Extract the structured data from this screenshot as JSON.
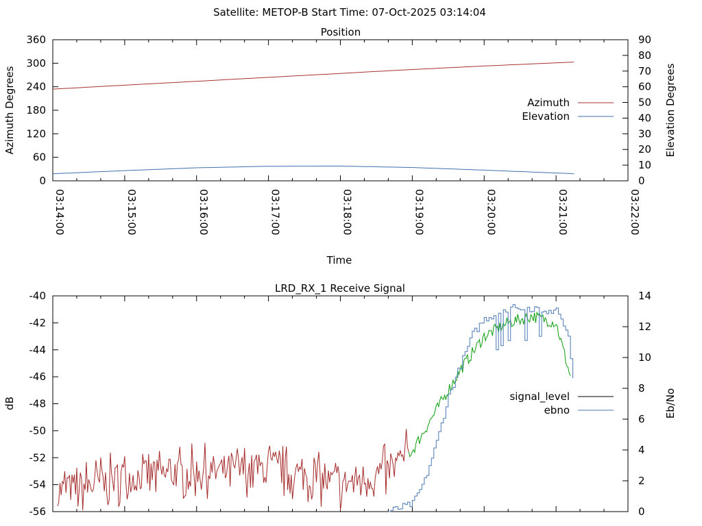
{
  "header": {
    "title": "Satellite: METOP-B    Start Time: 07-Oct-2025 03:14:04"
  },
  "colors": {
    "azimuth": "#a83232",
    "elevation": "#3f6fb0",
    "signal_level_legend": "#000000",
    "signal_level_low": "#a52a2a",
    "signal_level_high": "#0c9e0c",
    "ebno": "#4a79b5"
  },
  "chart_data": [
    {
      "type": "line",
      "title": "Position",
      "xlabel": "Time",
      "ylabel": "Azimuth Degrees",
      "y2label": "Elevation Degrees",
      "xticks": [
        "03:14:00",
        "03:15:00",
        "03:16:00",
        "03:17:00",
        "03:18:00",
        "03:19:00",
        "03:20:00",
        "03:21:00",
        "03:22:00"
      ],
      "xlim": [
        "03:14:00",
        "03:22:00"
      ],
      "ylim": [
        0,
        360
      ],
      "y2lim": [
        0,
        90
      ],
      "yticks": [
        0,
        60,
        120,
        180,
        240,
        300,
        360
      ],
      "y2ticks": [
        0,
        10,
        20,
        30,
        40,
        50,
        60,
        70,
        80,
        90
      ],
      "legend_position": "right",
      "series": [
        {
          "name": "Azimuth",
          "axis": "y",
          "x": [
            "03:14:00",
            "03:15:00",
            "03:16:00",
            "03:17:00",
            "03:18:00",
            "03:19:00",
            "03:20:00",
            "03:21:00",
            "03:21:15"
          ],
          "values": [
            234,
            244,
            254,
            264,
            274,
            284,
            293,
            301,
            303
          ]
        },
        {
          "name": "Elevation",
          "axis": "y2",
          "x": [
            "03:14:00",
            "03:15:00",
            "03:16:00",
            "03:17:00",
            "03:18:00",
            "03:19:00",
            "03:20:00",
            "03:21:00",
            "03:21:15"
          ],
          "values": [
            4.5,
            6.5,
            8.3,
            9.3,
            9.4,
            8.5,
            6.8,
            5.0,
            4.5
          ]
        }
      ]
    },
    {
      "type": "line",
      "title": "LRD_RX_1 Receive Signal",
      "ylabel": "dB",
      "y2label": "Eb/No",
      "ylim": [
        -56,
        -40
      ],
      "y2lim": [
        0,
        14
      ],
      "yticks": [
        -56,
        -54,
        -52,
        -50,
        -48,
        -46,
        -44,
        -42,
        -40
      ],
      "y2ticks": [
        0,
        2,
        4,
        6,
        8,
        10,
        12,
        14
      ],
      "legend_position": "right",
      "series": [
        {
          "name": "signal_level",
          "axis": "y",
          "x": [
            "03:14:00",
            "03:15:00",
            "03:16:00",
            "03:17:00",
            "03:18:00",
            "03:18:40",
            "03:19:00",
            "03:19:20",
            "03:19:40",
            "03:20:00",
            "03:20:20",
            "03:20:40",
            "03:21:00",
            "03:21:15"
          ],
          "values": [
            -54.5,
            -53.5,
            -53.0,
            -52.8,
            -54.0,
            -53.0,
            -51.5,
            -48.5,
            -45.5,
            -43.0,
            -42.0,
            -41.5,
            -42.0,
            -47.0
          ]
        },
        {
          "name": "ebno",
          "axis": "y2",
          "x": [
            "03:18:40",
            "03:19:00",
            "03:19:10",
            "03:19:20",
            "03:19:30",
            "03:19:40",
            "03:19:50",
            "03:20:00",
            "03:20:20",
            "03:20:40",
            "03:21:00",
            "03:21:10",
            "03:21:15"
          ],
          "values": [
            0.0,
            0.5,
            2.0,
            4.5,
            7.5,
            9.5,
            11.5,
            12.5,
            13.2,
            13.2,
            13.0,
            11.5,
            8.0
          ]
        }
      ]
    }
  ]
}
